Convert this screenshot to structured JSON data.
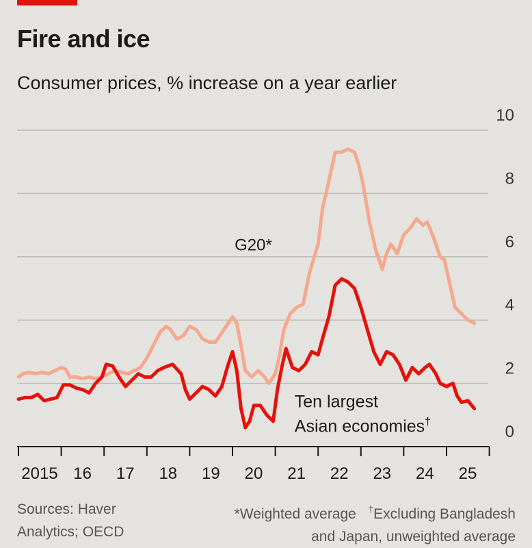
{
  "header": {
    "title": "Fire and ice",
    "subtitle": "Consumer prices, % increase on a year earlier"
  },
  "footer": {
    "sources": [
      "Sources: Haver",
      "Analytics; OECD"
    ],
    "note_weighted": "*Weighted average",
    "note_excluding_mark": "†",
    "note_excluding": "Excluding Bangladesh",
    "note_excluding_2": "and Japan, unweighted average"
  },
  "colors": {
    "g20": "#f4a98f",
    "asia": "#e3120b",
    "grid": "#bdbab5",
    "axis": "#1a1a1a",
    "accent": "#e3120b"
  },
  "chart_data": {
    "type": "line",
    "title": "Fire and ice",
    "subtitle": "Consumer prices, % increase on a year earlier",
    "x_tick_labels": [
      "2015",
      "16",
      "17",
      "18",
      "19",
      "20",
      "21",
      "22",
      "23",
      "24",
      "25"
    ],
    "y_ticks": [
      0,
      2,
      4,
      6,
      8,
      10
    ],
    "xlim": [
      2015,
      2026
    ],
    "ylim": [
      0,
      10
    ],
    "grid": true,
    "y_axis_side": "right",
    "series": [
      {
        "name": "G20*",
        "label_x": 2020.05,
        "label_y": 6.2,
        "points": [
          [
            2015.0,
            2.2
          ],
          [
            2015.1,
            2.3
          ],
          [
            2015.25,
            2.35
          ],
          [
            2015.4,
            2.3
          ],
          [
            2015.55,
            2.35
          ],
          [
            2015.7,
            2.3
          ],
          [
            2015.85,
            2.4
          ],
          [
            2016.0,
            2.5
          ],
          [
            2016.1,
            2.45
          ],
          [
            2016.2,
            2.2
          ],
          [
            2016.35,
            2.2
          ],
          [
            2016.5,
            2.15
          ],
          [
            2016.65,
            2.2
          ],
          [
            2016.8,
            2.15
          ],
          [
            2016.95,
            2.2
          ],
          [
            2017.1,
            2.3
          ],
          [
            2017.25,
            2.4
          ],
          [
            2017.4,
            2.35
          ],
          [
            2017.55,
            2.3
          ],
          [
            2017.7,
            2.4
          ],
          [
            2017.85,
            2.5
          ],
          [
            2018.0,
            2.8
          ],
          [
            2018.15,
            3.2
          ],
          [
            2018.3,
            3.6
          ],
          [
            2018.45,
            3.8
          ],
          [
            2018.55,
            3.7
          ],
          [
            2018.7,
            3.4
          ],
          [
            2018.85,
            3.5
          ],
          [
            2019.0,
            3.8
          ],
          [
            2019.15,
            3.7
          ],
          [
            2019.3,
            3.4
          ],
          [
            2019.45,
            3.3
          ],
          [
            2019.6,
            3.3
          ],
          [
            2019.75,
            3.6
          ],
          [
            2019.9,
            3.9
          ],
          [
            2020.0,
            4.1
          ],
          [
            2020.1,
            3.9
          ],
          [
            2020.2,
            3.2
          ],
          [
            2020.3,
            2.4
          ],
          [
            2020.45,
            2.2
          ],
          [
            2020.6,
            2.4
          ],
          [
            2020.75,
            2.2
          ],
          [
            2020.85,
            2.0
          ],
          [
            2021.0,
            2.3
          ],
          [
            2021.1,
            2.9
          ],
          [
            2021.2,
            3.7
          ],
          [
            2021.35,
            4.2
          ],
          [
            2021.5,
            4.4
          ],
          [
            2021.65,
            4.5
          ],
          [
            2021.8,
            5.5
          ],
          [
            2022.0,
            6.4
          ],
          [
            2022.1,
            7.5
          ],
          [
            2022.25,
            8.4
          ],
          [
            2022.4,
            9.3
          ],
          [
            2022.55,
            9.3
          ],
          [
            2022.7,
            9.4
          ],
          [
            2022.85,
            9.3
          ],
          [
            2022.95,
            8.9
          ],
          [
            2023.05,
            8.3
          ],
          [
            2023.2,
            7.1
          ],
          [
            2023.35,
            6.2
          ],
          [
            2023.5,
            5.6
          ],
          [
            2023.6,
            6.1
          ],
          [
            2023.7,
            6.4
          ],
          [
            2023.85,
            6.1
          ],
          [
            2024.0,
            6.7
          ],
          [
            2024.15,
            6.9
          ],
          [
            2024.3,
            7.2
          ],
          [
            2024.45,
            7.0
          ],
          [
            2024.55,
            7.1
          ],
          [
            2024.7,
            6.6
          ],
          [
            2024.85,
            6.0
          ],
          [
            2024.95,
            5.9
          ],
          [
            2025.05,
            5.3
          ],
          [
            2025.2,
            4.4
          ],
          [
            2025.35,
            4.2
          ],
          [
            2025.5,
            4.0
          ],
          [
            2025.65,
            3.9
          ]
        ]
      },
      {
        "name": "Ten largest Asian economies†",
        "label_lines": [
          "Ten largest",
          "Asian economies"
        ],
        "label_x": 2021.45,
        "label_y_top": 1.25,
        "points": [
          [
            2015.0,
            1.5
          ],
          [
            2015.15,
            1.55
          ],
          [
            2015.3,
            1.55
          ],
          [
            2015.45,
            1.65
          ],
          [
            2015.6,
            1.45
          ],
          [
            2015.75,
            1.5
          ],
          [
            2015.9,
            1.55
          ],
          [
            2016.05,
            1.95
          ],
          [
            2016.2,
            1.95
          ],
          [
            2016.35,
            1.85
          ],
          [
            2016.5,
            1.8
          ],
          [
            2016.65,
            1.7
          ],
          [
            2016.8,
            2.0
          ],
          [
            2016.95,
            2.2
          ],
          [
            2017.05,
            2.6
          ],
          [
            2017.2,
            2.55
          ],
          [
            2017.35,
            2.2
          ],
          [
            2017.5,
            1.9
          ],
          [
            2017.65,
            2.1
          ],
          [
            2017.8,
            2.3
          ],
          [
            2017.95,
            2.2
          ],
          [
            2018.1,
            2.2
          ],
          [
            2018.25,
            2.4
          ],
          [
            2018.4,
            2.5
          ],
          [
            2018.6,
            2.6
          ],
          [
            2018.8,
            2.3
          ],
          [
            2018.9,
            1.8
          ],
          [
            2019.0,
            1.5
          ],
          [
            2019.15,
            1.7
          ],
          [
            2019.3,
            1.9
          ],
          [
            2019.45,
            1.8
          ],
          [
            2019.6,
            1.6
          ],
          [
            2019.75,
            1.9
          ],
          [
            2019.9,
            2.6
          ],
          [
            2020.0,
            3.0
          ],
          [
            2020.1,
            2.4
          ],
          [
            2020.2,
            1.2
          ],
          [
            2020.3,
            0.6
          ],
          [
            2020.4,
            0.8
          ],
          [
            2020.5,
            1.3
          ],
          [
            2020.65,
            1.3
          ],
          [
            2020.8,
            1.0
          ],
          [
            2020.95,
            0.8
          ],
          [
            2021.05,
            1.8
          ],
          [
            2021.15,
            2.5
          ],
          [
            2021.25,
            3.1
          ],
          [
            2021.4,
            2.5
          ],
          [
            2021.55,
            2.4
          ],
          [
            2021.7,
            2.6
          ],
          [
            2021.85,
            3.0
          ],
          [
            2022.0,
            2.9
          ],
          [
            2022.1,
            3.4
          ],
          [
            2022.25,
            4.1
          ],
          [
            2022.4,
            5.1
          ],
          [
            2022.55,
            5.3
          ],
          [
            2022.7,
            5.2
          ],
          [
            2022.85,
            5.0
          ],
          [
            2023.0,
            4.4
          ],
          [
            2023.15,
            3.7
          ],
          [
            2023.3,
            3.0
          ],
          [
            2023.45,
            2.6
          ],
          [
            2023.6,
            3.0
          ],
          [
            2023.75,
            2.9
          ],
          [
            2023.9,
            2.6
          ],
          [
            2024.05,
            2.1
          ],
          [
            2024.2,
            2.5
          ],
          [
            2024.35,
            2.3
          ],
          [
            2024.5,
            2.5
          ],
          [
            2024.6,
            2.6
          ],
          [
            2024.75,
            2.3
          ],
          [
            2024.85,
            2.0
          ],
          [
            2025.0,
            1.9
          ],
          [
            2025.15,
            2.0
          ],
          [
            2025.25,
            1.6
          ],
          [
            2025.35,
            1.4
          ],
          [
            2025.5,
            1.45
          ],
          [
            2025.65,
            1.2
          ]
        ]
      }
    ]
  }
}
